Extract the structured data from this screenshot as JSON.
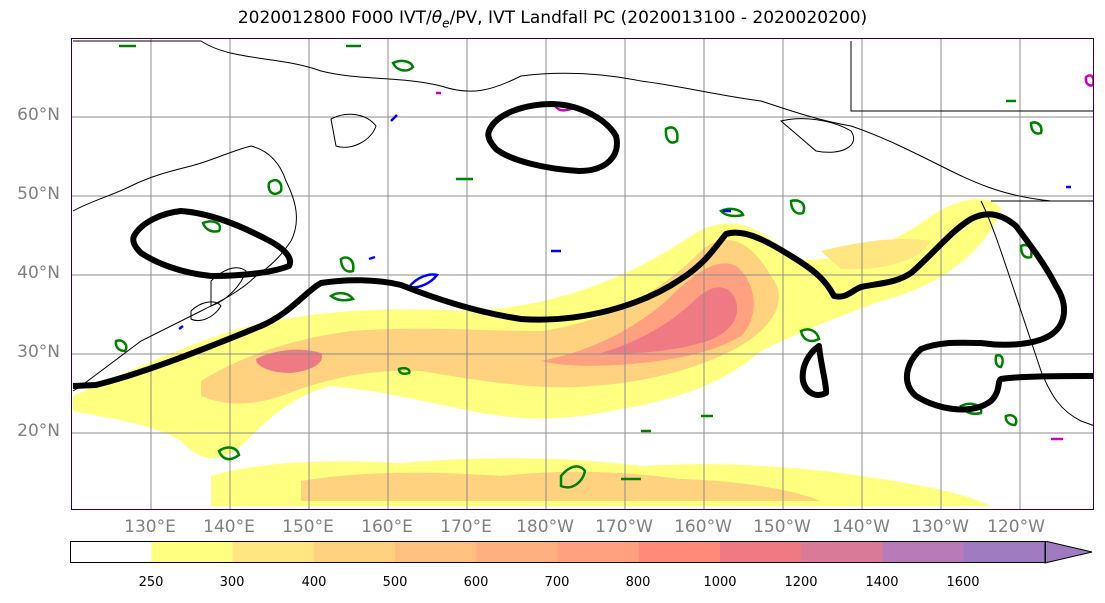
{
  "title_prefix": "2020012800 F000 IVT/",
  "title_theta": "θ",
  "title_theta_sub": "e",
  "title_suffix": "/PV, IVT Landfall PC (2020013100 - 2020020200)",
  "lat_labels": [
    "60°N",
    "50°N",
    "40°N",
    "30°N",
    "20°N"
  ],
  "lon_labels": [
    "130°E",
    "140°E",
    "150°E",
    "160°E",
    "170°E",
    "180°W",
    "170°W",
    "160°W",
    "150°W",
    "140°W",
    "130°W",
    "120°W"
  ],
  "colorbar": {
    "levels": [
      "250",
      "300",
      "400",
      "500",
      "600",
      "700",
      "800",
      "1000",
      "1200",
      "1400",
      "1600"
    ],
    "colors": [
      "#ffffff",
      "#ffff80",
      "#ffe680",
      "#ffd280",
      "#ffc080",
      "#ffb080",
      "#ffa080",
      "#ff8a7a",
      "#f07a84",
      "#d87a98",
      "#b87ab8",
      "#a07ac0"
    ]
  },
  "colors": {
    "ivt_contour": "#000000",
    "theta_e": "#008000",
    "pv_blue": "#0000ff",
    "pv_magenta": "#cc00cc",
    "frame": "#3a0035"
  }
}
